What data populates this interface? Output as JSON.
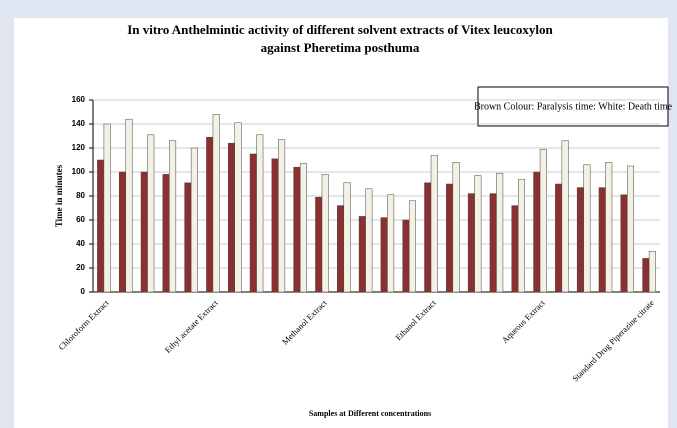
{
  "chart_data": {
    "type": "bar",
    "title": [
      "In vitro Anthelmintic activity of different solvent extracts of Vitex leucoxylon",
      "against Pheretima posthuma"
    ],
    "x_label": "Samples at Different concentrations",
    "y_label": "Time in minutes",
    "legend_text": "Brown Colour: Paralysis time: White: Death time",
    "categories": [
      "Chloroform Extract",
      null,
      null,
      null,
      null,
      "Ethyl acetate Extract",
      null,
      null,
      null,
      null,
      "Methanol Extract",
      null,
      null,
      null,
      null,
      "Ethanol Extract",
      null,
      null,
      null,
      null,
      "Aqueous Extract",
      null,
      null,
      null,
      null,
      "Standard Drug Piperazine citrate"
    ],
    "series": [
      {
        "color": "#8b2f2f",
        "values": [
          110,
          100,
          100,
          98,
          91,
          129,
          124,
          115,
          111,
          104,
          79,
          72,
          63,
          62,
          60,
          91,
          90,
          82,
          82,
          72,
          100,
          90,
          87,
          87,
          81,
          28
        ]
      },
      {
        "color": "#f3f1e4",
        "values": [
          140,
          144,
          131,
          126,
          120,
          148,
          141,
          131,
          127,
          107,
          98,
          91,
          86,
          81,
          76,
          114,
          108,
          97,
          99,
          94,
          119,
          126,
          106,
          108,
          105,
          34
        ]
      }
    ],
    "ylim": [
      0,
      160
    ],
    "yticks": [
      0,
      20,
      40,
      60,
      80,
      100,
      120,
      140,
      160
    ],
    "grid": true
  }
}
